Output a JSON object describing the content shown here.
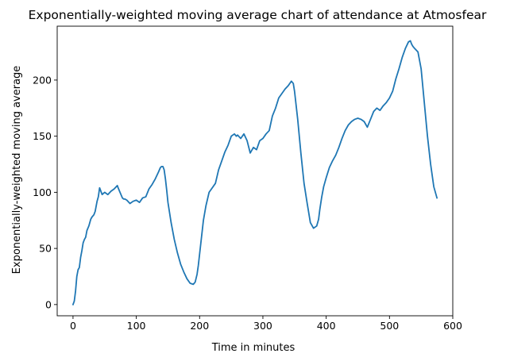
{
  "chart_data": {
    "type": "line",
    "title": "Exponentially-weighted moving average chart of attendance at Atmosfear",
    "xlabel": "Time in minutes",
    "ylabel": "Exponentially-weighted moving average",
    "xlim": [
      -25,
      600
    ],
    "ylim": [
      -10,
      248
    ],
    "x_ticks": [
      0,
      100,
      200,
      300,
      400,
      500,
      600
    ],
    "y_ticks": [
      0,
      50,
      100,
      150,
      200
    ],
    "grid": false,
    "line_color": "#1f77b4",
    "x": [
      0,
      2,
      4,
      6,
      8,
      10,
      12,
      14,
      16,
      18,
      20,
      22,
      25,
      28,
      30,
      33,
      35,
      38,
      40,
      42,
      44,
      46,
      48,
      50,
      55,
      60,
      65,
      70,
      72,
      75,
      78,
      80,
      82,
      85,
      90,
      95,
      100,
      105,
      110,
      115,
      120,
      125,
      130,
      135,
      138,
      140,
      142,
      144,
      146,
      148,
      150,
      155,
      160,
      165,
      170,
      175,
      180,
      185,
      190,
      193,
      196,
      198,
      200,
      203,
      206,
      210,
      215,
      220,
      225,
      230,
      235,
      240,
      245,
      250,
      255,
      258,
      260,
      265,
      270,
      275,
      280,
      285,
      290,
      295,
      300,
      305,
      310,
      315,
      320,
      325,
      330,
      335,
      340,
      345,
      348,
      350,
      355,
      360,
      365,
      370,
      375,
      380,
      385,
      388,
      390,
      393,
      396,
      400,
      405,
      410,
      415,
      420,
      425,
      430,
      435,
      440,
      445,
      450,
      455,
      460,
      465,
      470,
      475,
      480,
      485,
      490,
      495,
      500,
      505,
      510,
      515,
      520,
      525,
      530,
      533,
      535,
      537,
      540,
      545,
      550,
      555,
      560,
      565,
      570,
      575
    ],
    "y": [
      0,
      3,
      12,
      25,
      31,
      33,
      42,
      48,
      55,
      58,
      60,
      66,
      70,
      76,
      78,
      80,
      83,
      92,
      96,
      104,
      101,
      98,
      99,
      100,
      98,
      101,
      103,
      106,
      103,
      99,
      95,
      94,
      94,
      93,
      90,
      92,
      93,
      91,
      95,
      96,
      103,
      107,
      112,
      118,
      122,
      123,
      123,
      120,
      112,
      102,
      91,
      73,
      58,
      46,
      36,
      29,
      23,
      19,
      18,
      20,
      27,
      35,
      45,
      60,
      75,
      88,
      100,
      104,
      108,
      120,
      128,
      136,
      142,
      150,
      152,
      150,
      151,
      148,
      152,
      146,
      135,
      140,
      138,
      146,
      148,
      152,
      155,
      168,
      175,
      184,
      188,
      192,
      195,
      199,
      197,
      190,
      165,
      135,
      108,
      90,
      73,
      68,
      70,
      76,
      85,
      96,
      105,
      113,
      122,
      128,
      133,
      140,
      148,
      155,
      160,
      163,
      165,
      166,
      165,
      163,
      158,
      165,
      172,
      175,
      173,
      177,
      180,
      184,
      190,
      201,
      210,
      220,
      228,
      234,
      235,
      232,
      230,
      228,
      225,
      210,
      180,
      150,
      125,
      105,
      95
    ]
  }
}
